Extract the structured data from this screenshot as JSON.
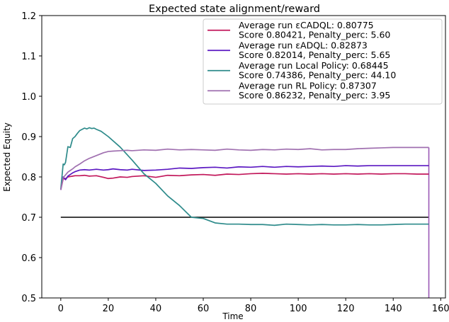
{
  "chart_data": {
    "type": "line",
    "title": "Expected state alignment/reward",
    "xlabel": "Time",
    "ylabel": "Expected Equity",
    "xlim": [
      -8,
      162
    ],
    "ylim": [
      0.5,
      1.2
    ],
    "xticks": [
      0,
      20,
      40,
      60,
      80,
      100,
      120,
      140,
      160
    ],
    "yticks": [
      0.5,
      0.6,
      0.7,
      0.8,
      0.9,
      1.0,
      1.1,
      1.2
    ],
    "xtick_labels": [
      "0",
      "20",
      "40",
      "60",
      "80",
      "100",
      "120",
      "140",
      "160"
    ],
    "ytick_labels": [
      "0.5",
      "0.6",
      "0.7",
      "0.8",
      "0.9",
      "1.0",
      "1.1",
      "1.2"
    ],
    "grid": false,
    "legend_position": "top-right",
    "reference_line": {
      "y": 0.7,
      "x_range": [
        0,
        155
      ],
      "color": "#000000"
    },
    "vertical_drop": {
      "x": 155,
      "from_y": 0.873,
      "to_y": 0.5,
      "color": "#9b59b6"
    },
    "series": [
      {
        "legend_line1": "Average run εCADQL: 0.80775",
        "legend_line2": "Score 0.80421, Penalty_perc: 5.60",
        "color": "#c2185b",
        "x": [
          0,
          1,
          2,
          3,
          4,
          5,
          6,
          8,
          10,
          12,
          15,
          18,
          20,
          22,
          25,
          28,
          30,
          35,
          40,
          45,
          50,
          55,
          60,
          65,
          70,
          75,
          80,
          85,
          90,
          95,
          100,
          105,
          110,
          115,
          120,
          125,
          130,
          135,
          140,
          145,
          150,
          155
        ],
        "y": [
          0.768,
          0.795,
          0.796,
          0.8,
          0.801,
          0.802,
          0.803,
          0.803,
          0.804,
          0.802,
          0.803,
          0.799,
          0.796,
          0.797,
          0.8,
          0.799,
          0.801,
          0.803,
          0.799,
          0.804,
          0.803,
          0.805,
          0.806,
          0.804,
          0.807,
          0.806,
          0.808,
          0.809,
          0.808,
          0.807,
          0.808,
          0.807,
          0.808,
          0.807,
          0.808,
          0.807,
          0.808,
          0.807,
          0.808,
          0.808,
          0.807,
          0.807
        ]
      },
      {
        "legend_line1": "Average run εADQL: 0.82873",
        "legend_line2": "Score 0.82014, Penalty_perc: 5.65",
        "color": "#5b18c2",
        "x": [
          0,
          1,
          2,
          3,
          4,
          5,
          6,
          8,
          10,
          12,
          15,
          18,
          20,
          22,
          25,
          28,
          30,
          35,
          40,
          45,
          50,
          55,
          60,
          65,
          70,
          75,
          80,
          85,
          90,
          95,
          100,
          105,
          110,
          115,
          120,
          125,
          130,
          135,
          140,
          145,
          150,
          155
        ],
        "y": [
          0.768,
          0.8,
          0.793,
          0.802,
          0.806,
          0.81,
          0.813,
          0.817,
          0.818,
          0.817,
          0.819,
          0.817,
          0.818,
          0.82,
          0.818,
          0.817,
          0.819,
          0.816,
          0.817,
          0.819,
          0.822,
          0.821,
          0.823,
          0.824,
          0.822,
          0.825,
          0.824,
          0.826,
          0.824,
          0.826,
          0.825,
          0.826,
          0.827,
          0.826,
          0.828,
          0.827,
          0.828,
          0.828,
          0.828,
          0.828,
          0.828,
          0.828
        ]
      },
      {
        "legend_line1": "Average run Local Policy: 0.68445",
        "legend_line2": "Score 0.74386, Penalty_perc: 44.10",
        "color": "#2e8b8b",
        "x": [
          0,
          1,
          1.5,
          2,
          3,
          4,
          5,
          6,
          7,
          8,
          9,
          10,
          11,
          12,
          13,
          14,
          15,
          17,
          20,
          25,
          30,
          35,
          40,
          45,
          50,
          55,
          60,
          65,
          70,
          75,
          80,
          85,
          90,
          95,
          100,
          105,
          110,
          115,
          120,
          125,
          130,
          135,
          140,
          145,
          150,
          155
        ],
        "y": [
          0.77,
          0.832,
          0.83,
          0.836,
          0.875,
          0.873,
          0.895,
          0.9,
          0.908,
          0.915,
          0.918,
          0.921,
          0.919,
          0.922,
          0.92,
          0.921,
          0.918,
          0.913,
          0.9,
          0.874,
          0.842,
          0.808,
          0.784,
          0.753,
          0.729,
          0.7,
          0.697,
          0.686,
          0.683,
          0.683,
          0.682,
          0.682,
          0.68,
          0.683,
          0.682,
          0.681,
          0.682,
          0.681,
          0.681,
          0.682,
          0.681,
          0.681,
          0.682,
          0.683,
          0.683,
          0.683
        ]
      },
      {
        "legend_line1": "Average run RL Policy: 0.87307",
        "legend_line2": "Score 0.86232, Penalty_perc: 3.95",
        "color": "#a070b0",
        "x": [
          0,
          1,
          2,
          3,
          4,
          5,
          6,
          8,
          10,
          12,
          15,
          18,
          20,
          22,
          25,
          28,
          30,
          35,
          40,
          45,
          50,
          55,
          60,
          65,
          70,
          75,
          80,
          85,
          90,
          95,
          100,
          105,
          110,
          115,
          120,
          125,
          130,
          135,
          140,
          145,
          150,
          155
        ],
        "y": [
          0.768,
          0.798,
          0.805,
          0.812,
          0.816,
          0.82,
          0.825,
          0.832,
          0.84,
          0.846,
          0.853,
          0.86,
          0.863,
          0.864,
          0.865,
          0.866,
          0.865,
          0.867,
          0.866,
          0.869,
          0.867,
          0.868,
          0.867,
          0.866,
          0.869,
          0.867,
          0.866,
          0.868,
          0.867,
          0.869,
          0.868,
          0.87,
          0.867,
          0.868,
          0.868,
          0.87,
          0.871,
          0.872,
          0.873,
          0.873,
          0.873,
          0.873
        ]
      }
    ]
  }
}
